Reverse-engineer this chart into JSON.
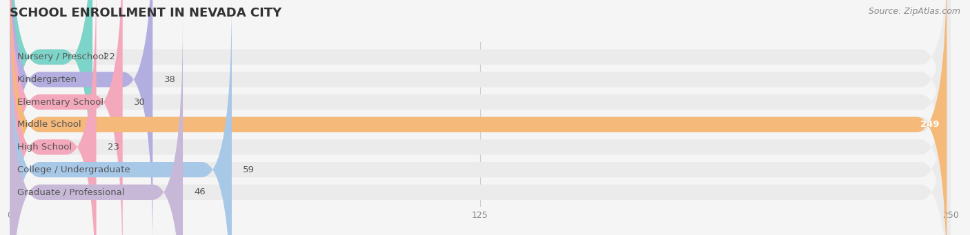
{
  "title": "SCHOOL ENROLLMENT IN NEVADA CITY",
  "source": "Source: ZipAtlas.com",
  "categories": [
    "Nursery / Preschool",
    "Kindergarten",
    "Elementary School",
    "Middle School",
    "High School",
    "College / Undergraduate",
    "Graduate / Professional"
  ],
  "values": [
    22,
    38,
    30,
    249,
    23,
    59,
    46
  ],
  "bar_colors": [
    "#7dd4c8",
    "#b3aee0",
    "#f4a8bc",
    "#f5b97a",
    "#f4a8bc",
    "#a8c8e8",
    "#c8b8d8"
  ],
  "label_colors": {
    "Middle School": "#ffffff",
    "default": "#555555"
  },
  "xlim": [
    0,
    250
  ],
  "xticks": [
    0,
    125,
    250
  ],
  "background_color": "#f5f5f5",
  "bar_background_color": "#ebebeb",
  "title_fontsize": 13,
  "label_fontsize": 9.5,
  "value_fontsize": 9.5,
  "source_fontsize": 9
}
